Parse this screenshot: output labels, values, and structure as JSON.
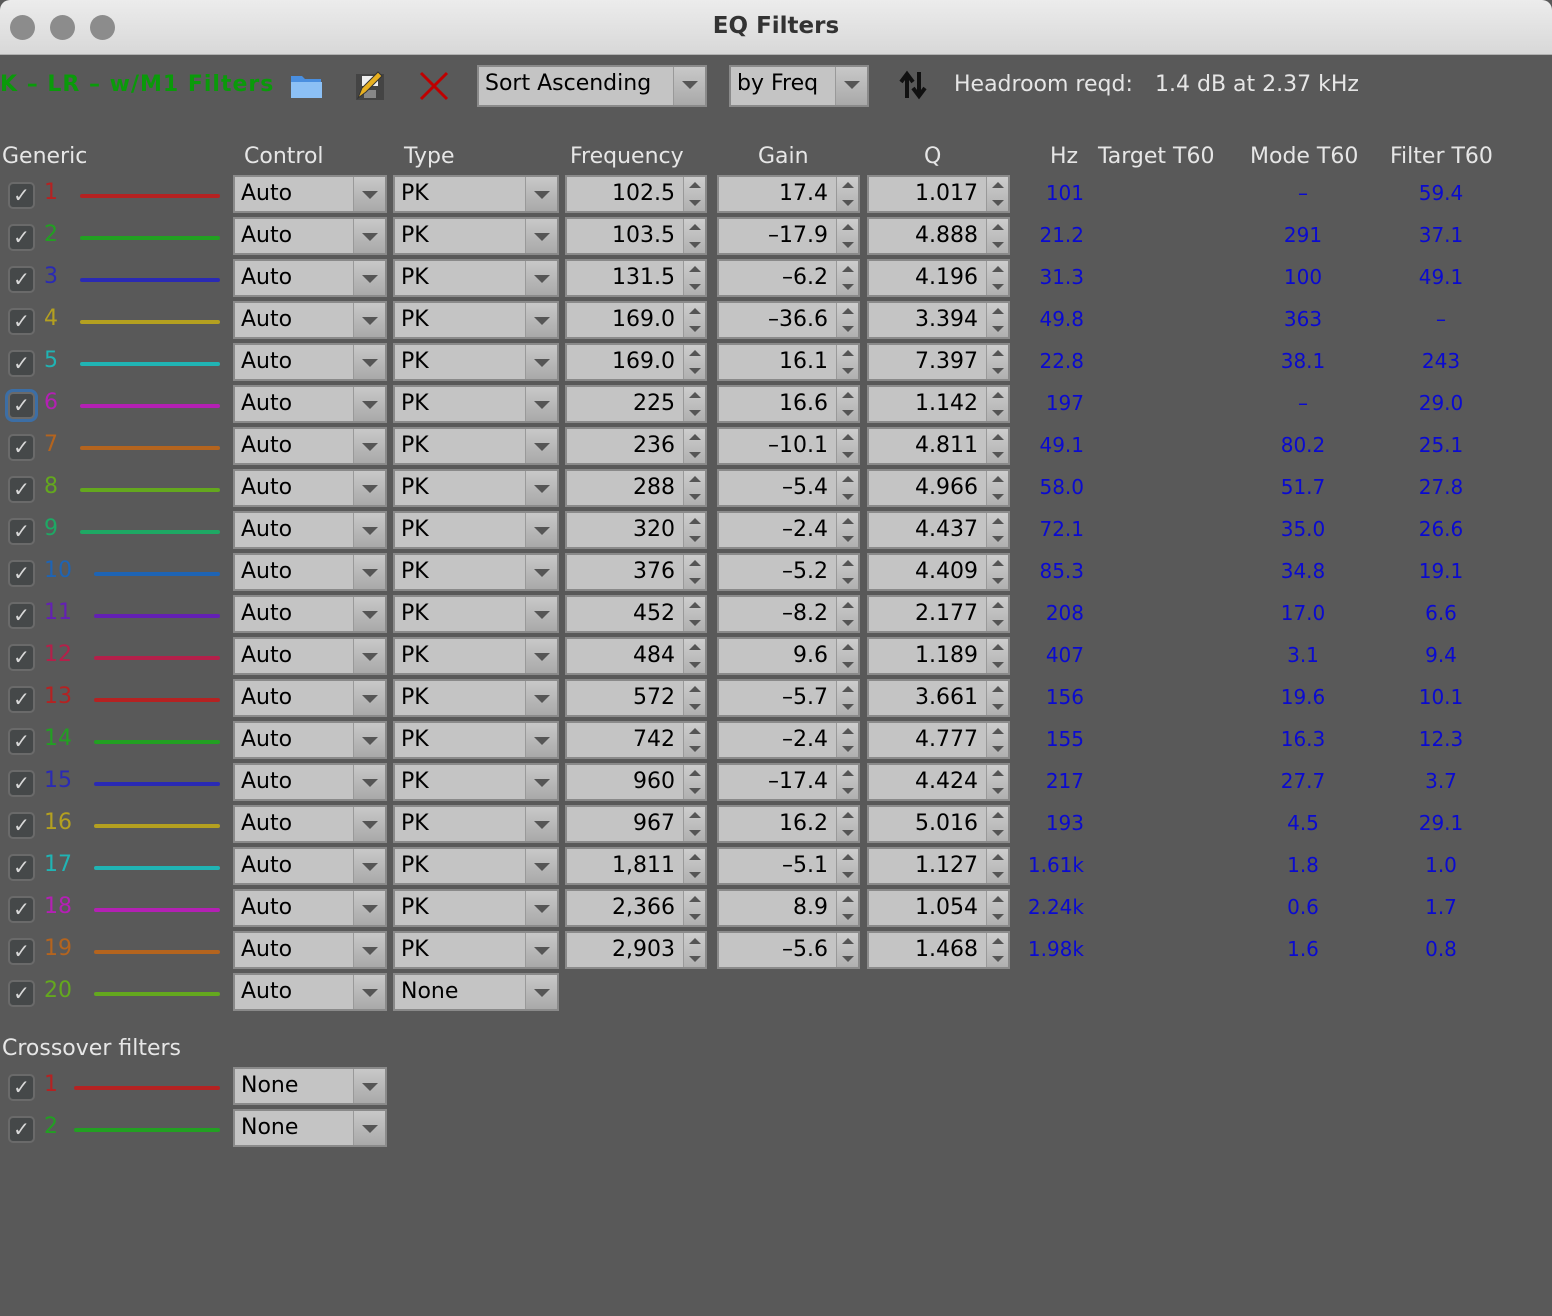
{
  "window": {
    "title": "EQ Filters"
  },
  "toolbar": {
    "eq_name": "K – LR – w/M1 Filters",
    "open_icon": "folder-icon",
    "save_icon": "save-edit-icon",
    "delete_icon": "close-x-icon",
    "sort_order": "Sort Ascending",
    "sort_by": "by Freq",
    "sort_icon": "sort-arrows-icon",
    "headroom_label": "Headroom reqd:",
    "headroom_value": "1.4 dB at 2.37 kHz"
  },
  "headers": {
    "generic": "Generic",
    "control": "Control",
    "type": "Type",
    "frequency": "Frequency",
    "gain": "Gain",
    "q": "Q",
    "hz": "Hz",
    "target_t60": "Target T60",
    "mode_t60": "Mode T60",
    "filter_t60": "Filter T60"
  },
  "filters": [
    {
      "n": "1",
      "color": "#b52222",
      "control": "Auto",
      "type": "PK",
      "freq": "102.5",
      "gain": "17.4",
      "q": "1.017",
      "hz": "101",
      "mode": "–",
      "filter": "59.4"
    },
    {
      "n": "2",
      "color": "#22a022",
      "control": "Auto",
      "type": "PK",
      "freq": "103.5",
      "gain": "–17.9",
      "q": "4.888",
      "hz": "21.2",
      "mode": "291",
      "filter": "37.1"
    },
    {
      "n": "3",
      "color": "#2a2ab4",
      "control": "Auto",
      "type": "PK",
      "freq": "131.5",
      "gain": "–6.2",
      "q": "4.196",
      "hz": "31.3",
      "mode": "100",
      "filter": "49.1"
    },
    {
      "n": "4",
      "color": "#b4a020",
      "control": "Auto",
      "type": "PK",
      "freq": "169.0",
      "gain": "–36.6",
      "q": "3.394",
      "hz": "49.8",
      "mode": "363",
      "filter": "–"
    },
    {
      "n": "5",
      "color": "#20b4b4",
      "control": "Auto",
      "type": "PK",
      "freq": "169.0",
      "gain": "16.1",
      "q": "7.397",
      "hz": "22.8",
      "mode": "38.1",
      "filter": "243"
    },
    {
      "n": "6",
      "color": "#b420b4",
      "control": "Auto",
      "type": "PK",
      "freq": "225",
      "gain": "16.6",
      "q": "1.142",
      "hz": "197",
      "mode": "–",
      "filter": "29.0"
    },
    {
      "n": "7",
      "color": "#b4641e",
      "control": "Auto",
      "type": "PK",
      "freq": "236",
      "gain": "–10.1",
      "q": "4.811",
      "hz": "49.1",
      "mode": "80.2",
      "filter": "25.1"
    },
    {
      "n": "8",
      "color": "#64a81e",
      "control": "Auto",
      "type": "PK",
      "freq": "288",
      "gain": "–5.4",
      "q": "4.966",
      "hz": "58.0",
      "mode": "51.7",
      "filter": "27.8"
    },
    {
      "n": "9",
      "color": "#1ea864",
      "control": "Auto",
      "type": "PK",
      "freq": "320",
      "gain": "–2.4",
      "q": "4.437",
      "hz": "72.1",
      "mode": "35.0",
      "filter": "26.6"
    },
    {
      "n": "10",
      "color": "#1e64b4",
      "control": "Auto",
      "type": "PK",
      "freq": "376",
      "gain": "–5.2",
      "q": "4.409",
      "hz": "85.3",
      "mode": "34.8",
      "filter": "19.1"
    },
    {
      "n": "11",
      "color": "#6420b4",
      "control": "Auto",
      "type": "PK",
      "freq": "452",
      "gain": "–8.2",
      "q": "2.177",
      "hz": "208",
      "mode": "17.0",
      "filter": "6.6"
    },
    {
      "n": "12",
      "color": "#b4204a",
      "control": "Auto",
      "type": "PK",
      "freq": "484",
      "gain": "9.6",
      "q": "1.189",
      "hz": "407",
      "mode": "3.1",
      "filter": "9.4"
    },
    {
      "n": "13",
      "color": "#b52222",
      "control": "Auto",
      "type": "PK",
      "freq": "572",
      "gain": "–5.7",
      "q": "3.661",
      "hz": "156",
      "mode": "19.6",
      "filter": "10.1"
    },
    {
      "n": "14",
      "color": "#22a022",
      "control": "Auto",
      "type": "PK",
      "freq": "742",
      "gain": "–2.4",
      "q": "4.777",
      "hz": "155",
      "mode": "16.3",
      "filter": "12.3"
    },
    {
      "n": "15",
      "color": "#2a2ab4",
      "control": "Auto",
      "type": "PK",
      "freq": "960",
      "gain": "–17.4",
      "q": "4.424",
      "hz": "217",
      "mode": "27.7",
      "filter": "3.7"
    },
    {
      "n": "16",
      "color": "#b4a020",
      "control": "Auto",
      "type": "PK",
      "freq": "967",
      "gain": "16.2",
      "q": "5.016",
      "hz": "193",
      "mode": "4.5",
      "filter": "29.1"
    },
    {
      "n": "17",
      "color": "#20b4b4",
      "control": "Auto",
      "type": "PK",
      "freq": "1,811",
      "gain": "–5.1",
      "q": "1.127",
      "hz": "1.61k",
      "mode": "1.8",
      "filter": "1.0"
    },
    {
      "n": "18",
      "color": "#b420b4",
      "control": "Auto",
      "type": "PK",
      "freq": "2,366",
      "gain": "8.9",
      "q": "1.054",
      "hz": "2.24k",
      "mode": "0.6",
      "filter": "1.7"
    },
    {
      "n": "19",
      "color": "#b4641e",
      "control": "Auto",
      "type": "PK",
      "freq": "2,903",
      "gain": "–5.6",
      "q": "1.468",
      "hz": "1.98k",
      "mode": "1.6",
      "filter": "0.8"
    },
    {
      "n": "20",
      "color": "#64a81e",
      "control": "Auto",
      "type": "None"
    }
  ],
  "crossover": {
    "title": "Crossover filters",
    "filters": [
      {
        "n": "1",
        "color": "#b52222",
        "type": "None"
      },
      {
        "n": "2",
        "color": "#22a022",
        "type": "None"
      }
    ]
  }
}
